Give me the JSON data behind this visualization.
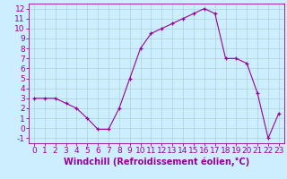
{
  "x_vals": [
    0,
    1,
    2,
    3,
    4,
    5,
    6,
    7,
    8,
    9,
    10,
    11,
    12,
    13,
    14,
    15,
    16,
    17,
    18,
    19,
    20,
    21,
    22,
    23
  ],
  "y_vals": [
    3,
    3,
    3,
    2.5,
    2,
    1,
    -0.1,
    -0.1,
    2,
    5,
    8,
    9.5,
    10,
    10.5,
    11,
    11.5,
    12,
    11.5,
    7,
    7,
    6.5,
    3.5,
    -1,
    1.5
  ],
  "line_color": "#990099",
  "marker": "+",
  "bg_color": "#cceeff",
  "grid_color": "#aad4d4",
  "xlabel": "Windchill (Refroidissement éolien,°C)",
  "xlim": [
    -0.5,
    23.5
  ],
  "ylim": [
    -1.5,
    12.5
  ],
  "yticks": [
    -1,
    0,
    1,
    2,
    3,
    4,
    5,
    6,
    7,
    8,
    9,
    10,
    11,
    12
  ],
  "xticks": [
    0,
    1,
    2,
    3,
    4,
    5,
    6,
    7,
    8,
    9,
    10,
    11,
    12,
    13,
    14,
    15,
    16,
    17,
    18,
    19,
    20,
    21,
    22,
    23
  ],
  "font_color": "#990099",
  "font_size": 6.5,
  "xlabel_fontsize": 7,
  "linewidth": 0.8,
  "markersize": 3.5,
  "markeredgewidth": 0.9
}
